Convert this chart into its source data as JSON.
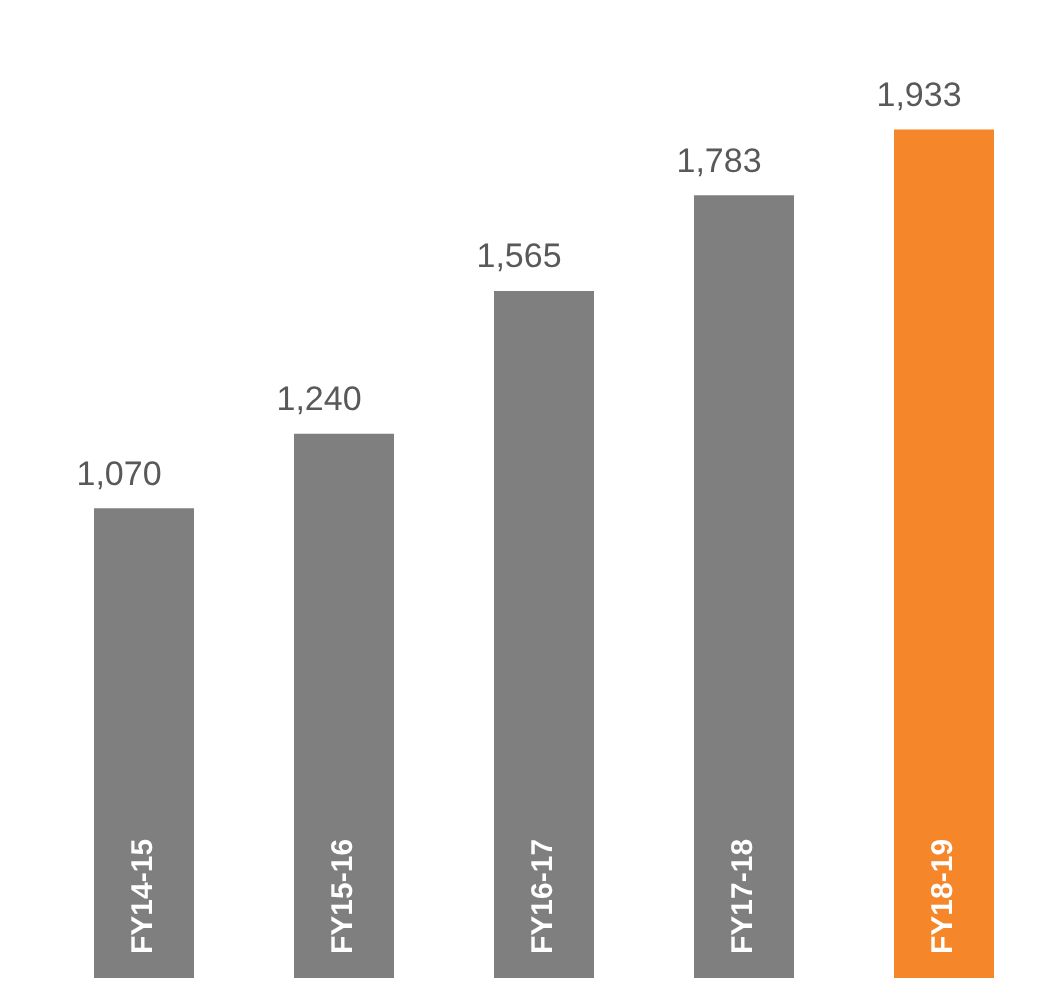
{
  "chart_data": {
    "type": "bar",
    "categories": [
      "FY14-15",
      "FY15-16",
      "FY16-17",
      "FY17-18",
      "FY18-19"
    ],
    "values": [
      1070,
      1240,
      1565,
      1783,
      1933
    ],
    "value_labels": [
      "1,070",
      "1,240",
      "1,565",
      "1,783",
      "1,933"
    ],
    "colors": [
      "#7f7f7f",
      "#7f7f7f",
      "#7f7f7f",
      "#7f7f7f",
      "#f5862a"
    ],
    "tick_labels": "x"
  }
}
